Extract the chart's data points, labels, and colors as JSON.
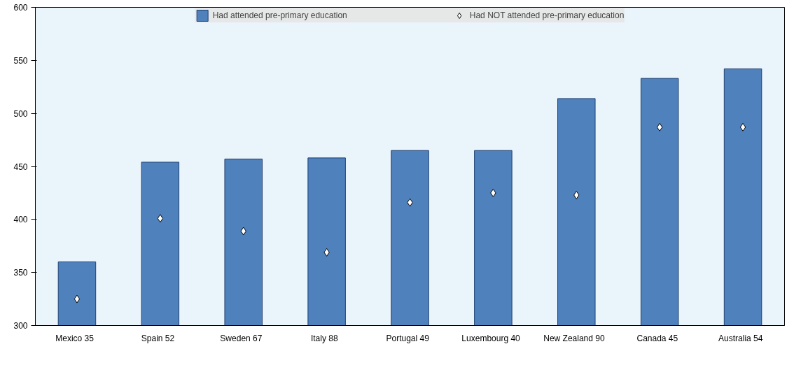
{
  "chart_data": {
    "type": "bar",
    "categories": [
      "Mexico   35",
      "Spain   52",
      "Sweden   67",
      "Italy   88",
      "Portugal   49",
      "Luxembourg   40",
      "New Zealand   90",
      "Canada   45",
      "Australia   54"
    ],
    "series": [
      {
        "name": "Had attended pre-primary education",
        "color": "#4f81bd",
        "values": [
          360,
          454,
          457,
          458,
          465,
          465,
          514,
          533,
          542
        ]
      },
      {
        "name": "Had NOT attended pre-primary education",
        "type": "scatter",
        "color": "#ffffff",
        "marker": "diamond",
        "values": [
          325,
          401,
          389,
          369,
          416,
          425,
          423,
          487,
          487
        ]
      }
    ],
    "ylim": [
      300,
      600
    ],
    "yticks": [
      300,
      350,
      400,
      450,
      500,
      550,
      600
    ],
    "grid": false,
    "legend": "top"
  }
}
